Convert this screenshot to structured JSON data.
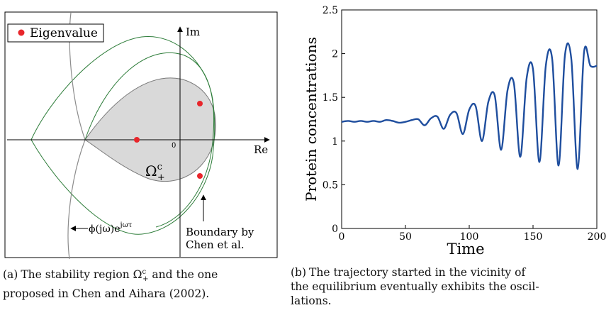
{
  "left_panel": {
    "legend_label": "Eigenvalue",
    "axis_im": "Im",
    "axis_re": "Re",
    "origin": "0",
    "region_label": "Ω",
    "region_sup": "c",
    "region_sub": "+",
    "curve_label": "ϕ(jω)e",
    "curve_sup": "jωτ",
    "boundary_line1": "Boundary by",
    "boundary_line2": "Chen et al.",
    "colors": {
      "eigen": "#e8262b",
      "region": "#d9d9d9",
      "boundary": "#2e7d3a",
      "curve": "#8c8c8c"
    }
  },
  "chart_data": {
    "type": "line",
    "xlabel": "Time",
    "ylabel": "Protein concentrations",
    "xlim": [
      0,
      200
    ],
    "ylim": [
      0,
      2.5
    ],
    "xticks": [
      "0",
      "50",
      "100",
      "150",
      "200"
    ],
    "yticks": [
      "0",
      "0.5",
      "1",
      "1.5",
      "2",
      "2.5"
    ],
    "series": [
      {
        "color": "#1f4e9e",
        "x": [
          0,
          5,
          10,
          15,
          20,
          25,
          30,
          35,
          40,
          45,
          50,
          55,
          60,
          65,
          70,
          75,
          80,
          85,
          90,
          95,
          100,
          105,
          110,
          115,
          120,
          125,
          130,
          135,
          140,
          145,
          150,
          155,
          160,
          165,
          170,
          175,
          180,
          185,
          190,
          195,
          200
        ],
        "y": [
          1.22,
          1.23,
          1.22,
          1.23,
          1.22,
          1.23,
          1.22,
          1.24,
          1.23,
          1.21,
          1.22,
          1.24,
          1.25,
          1.18,
          1.26,
          1.28,
          1.14,
          1.3,
          1.32,
          1.08,
          1.36,
          1.4,
          1.0,
          1.45,
          1.52,
          0.9,
          1.58,
          1.66,
          0.82,
          1.72,
          1.82,
          0.76,
          1.86,
          1.94,
          0.72,
          1.98,
          1.94,
          0.68,
          2.02,
          1.86,
          1.86
        ]
      }
    ]
  },
  "captions": {
    "left_tag": "(a)",
    "left_line1": "The stability region Ω",
    "left_line1_sup": "c",
    "left_line1_sub": "+",
    "left_line1_end": "and the one",
    "left_line2": "proposed in Chen and Aihara (2002).",
    "right_tag": "(b)",
    "right_line1": "The trajectory started in the vicinity of",
    "right_line2": "the equilibrium eventually exhibits the oscil-",
    "right_line3": "lations."
  }
}
